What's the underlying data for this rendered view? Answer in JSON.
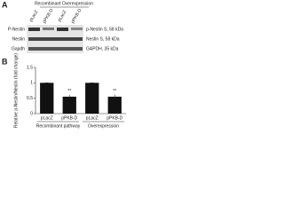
{
  "panel_a": {
    "label": "A",
    "header": "Recombinant Overexpression",
    "lanes": [
      "pLacZ",
      "pPKB-D",
      "pLacZ",
      "pPKB-D"
    ],
    "left_labels": [
      "P-Nestin",
      "Nestin",
      "Gapdh"
    ],
    "right_labels": [
      "p-Nestin S, 58 kDa",
      "Nestin S, 58 kDa",
      "GAPDH, 35 kDa"
    ]
  },
  "chart_data": {
    "type": "bar",
    "label": "B",
    "y_label": "Relative p-Nestin/Nestin (fold change)",
    "categories": [
      "pLacZ",
      "pPKB-D",
      "pLacZ",
      "pPKB-D"
    ],
    "groups": [
      "Recombinant pathway",
      "Overexpression"
    ],
    "values": [
      1,
      0.55,
      1,
      0.55
    ],
    "errors": [
      0,
      0.06,
      0,
      0.07
    ],
    "annotations": [
      "**",
      "**"
    ],
    "color": "#111111",
    "ylim": [
      0,
      1.5
    ],
    "yticks": [
      0,
      0.5,
      1,
      1.5
    ]
  }
}
